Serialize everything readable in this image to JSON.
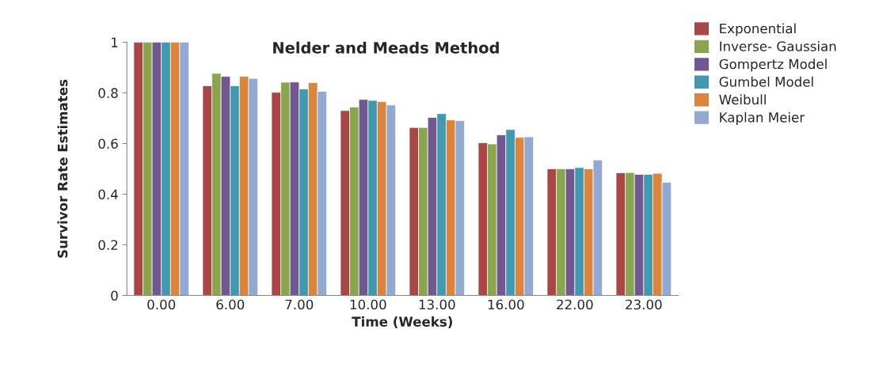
{
  "chart_data": {
    "type": "bar",
    "title": "Nelder and Meads Method",
    "xlabel": "Time (Weeks)",
    "ylabel": "Survivor Rate Estimates",
    "categories": [
      "0.00",
      "6.00",
      "7.00",
      "10.00",
      "13.00",
      "16.00",
      "22.00",
      "23.00"
    ],
    "series": [
      {
        "name": "Exponential",
        "color": "#a94646",
        "values": [
          1,
          0.828,
          0.802,
          0.73,
          0.663,
          0.603,
          0.5,
          0.484
        ]
      },
      {
        "name": "Inverse- Gaussian",
        "color": "#8aa44f",
        "values": [
          1,
          0.877,
          0.842,
          0.744,
          0.663,
          0.598,
          0.5,
          0.485
        ]
      },
      {
        "name": "Gompertz Model",
        "color": "#71588f",
        "values": [
          1,
          0.865,
          0.843,
          0.774,
          0.703,
          0.634,
          0.5,
          0.478
        ]
      },
      {
        "name": "Gumbel Model",
        "color": "#4298af",
        "values": [
          1,
          0.828,
          0.815,
          0.77,
          0.718,
          0.655,
          0.505,
          0.478
        ]
      },
      {
        "name": "Weibull",
        "color": "#db843d",
        "values": [
          1,
          0.865,
          0.84,
          0.765,
          0.693,
          0.624,
          0.5,
          0.482
        ]
      },
      {
        "name": "Kaplan Meier",
        "color": "#93a9cf",
        "values": [
          1,
          0.857,
          0.806,
          0.752,
          0.69,
          0.626,
          0.535,
          0.447
        ]
      }
    ],
    "ylim": [
      0,
      1
    ],
    "yticks": [
      0,
      {
        "value": 0.2,
        "label": "0.2"
      },
      {
        "value": 0.4,
        "label": "0.4"
      },
      {
        "value": 0.6,
        "label": "0.6"
      },
      {
        "value": 0.8,
        "label": "0.8"
      },
      1
    ],
    "grid": false,
    "legend": "top right"
  }
}
